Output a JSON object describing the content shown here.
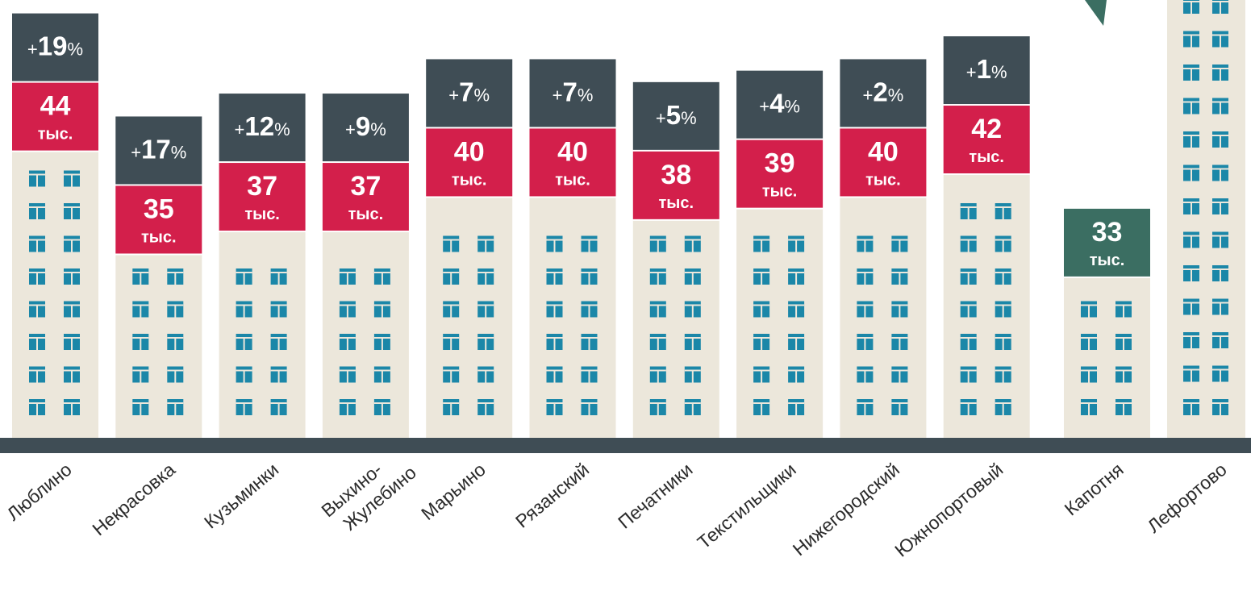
{
  "chart_data": {
    "type": "building",
    "categories": [
      "Люблино",
      "Некрасовка",
      "Кузьминки",
      "Выхино-Жулебино",
      "Марьино",
      "Рязанский",
      "Печатники",
      "Текстильщики",
      "Нижегородский",
      "Южнопортовый",
      "Капотня",
      "Лефортово"
    ],
    "values": [
      44,
      35,
      37,
      37,
      40,
      40,
      38,
      39,
      40,
      42,
      33,
      null
    ],
    "unit": "тыс.",
    "changes": {
      "values": [
        19,
        17,
        12,
        9,
        7,
        7,
        5,
        4,
        2,
        1,
        null,
        null
      ],
      "value_labels": [
        "+19%",
        "+17%",
        "+12%",
        "+9%",
        "+7%",
        "+7%",
        "+5%",
        "+4%",
        "+2%",
        "+1%",
        null,
        null
      ]
    },
    "value_box_colors": [
      "#d31f4b",
      "#d31f4b",
      "#d31f4b",
      "#d31f4b",
      "#d31f4b",
      "#d31f4b",
      "#d31f4b",
      "#d31f4b",
      "#d31f4b",
      "#d31f4b",
      "#3b6e62",
      null
    ],
    "change_box_color": "#3f4d55",
    "ylim": [
      13,
      47
    ]
  }
}
